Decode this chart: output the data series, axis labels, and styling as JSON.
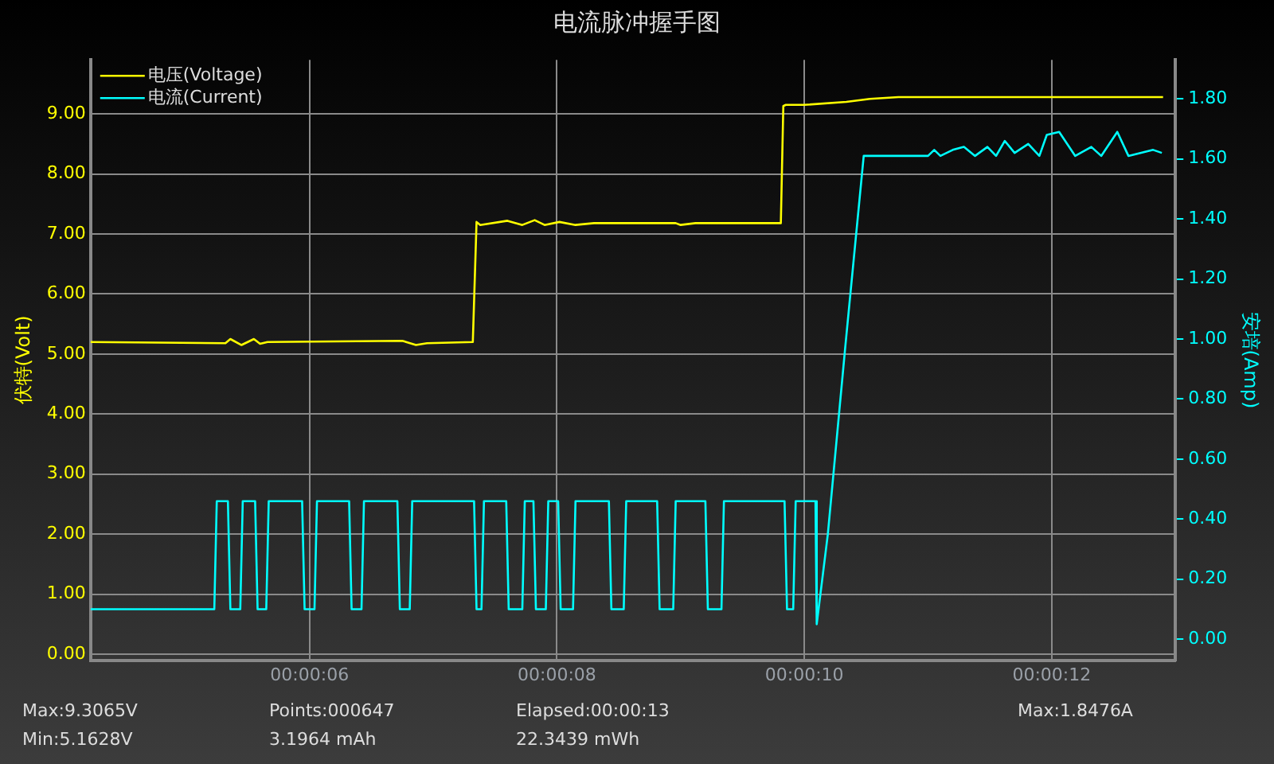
{
  "chart_data": {
    "type": "line",
    "title": "电流脉冲握手图",
    "ylabel": "伏特(Volt)",
    "y2label": "安培(Amp)",
    "xlim": [
      4.23,
      13.0
    ],
    "xticks": [
      {
        "value": 6,
        "label": "00:00:06"
      },
      {
        "value": 8,
        "label": "00:00:08"
      },
      {
        "value": 10,
        "label": "00:00:10"
      },
      {
        "value": 12,
        "label": "00:00:12"
      }
    ],
    "ylim": [
      -0.1,
      9.9
    ],
    "yticks": [
      {
        "value": 0,
        "label": "0.00"
      },
      {
        "value": 1,
        "label": "1.00"
      },
      {
        "value": 2,
        "label": "2.00"
      },
      {
        "value": 3,
        "label": "3.00"
      },
      {
        "value": 4,
        "label": "4.00"
      },
      {
        "value": 5,
        "label": "5.00"
      },
      {
        "value": 6,
        "label": "6.00"
      },
      {
        "value": 7,
        "label": "7.00"
      },
      {
        "value": 8,
        "label": "8.00"
      },
      {
        "value": 9,
        "label": "9.00"
      }
    ],
    "y2lim": [
      -0.07,
      1.93
    ],
    "y2ticks": [
      {
        "value": 0,
        "label": "0.00"
      },
      {
        "value": 0.2,
        "label": "0.20"
      },
      {
        "value": 0.4,
        "label": "0.40"
      },
      {
        "value": 0.6,
        "label": "0.60"
      },
      {
        "value": 0.8,
        "label": "0.80"
      },
      {
        "value": 1,
        "label": "1.00"
      },
      {
        "value": 1.2,
        "label": "1.20"
      },
      {
        "value": 1.4,
        "label": "1.40"
      },
      {
        "value": 1.6,
        "label": "1.60"
      },
      {
        "value": 1.8,
        "label": "1.80"
      }
    ],
    "grid": true,
    "legend": "top left",
    "marker": "none",
    "line_style": "solid",
    "series": [
      {
        "name": "电压(Voltage)",
        "color": "#ffff00",
        "x": [
          4.23,
          5.32,
          5.36,
          5.45,
          5.55,
          5.6,
          5.66,
          6.75,
          6.86,
          6.95,
          7.32,
          7.35,
          7.38,
          7.6,
          7.72,
          7.82,
          7.9,
          8.02,
          8.15,
          8.3,
          8.96,
          9.0,
          9.12,
          9.81,
          9.83,
          9.85,
          10.0,
          10.34,
          10.53,
          10.76,
          12.9
        ],
        "values": [
          5.2,
          5.18,
          5.25,
          5.15,
          5.25,
          5.17,
          5.2,
          5.22,
          5.15,
          5.18,
          5.2,
          7.2,
          7.15,
          7.22,
          7.15,
          7.23,
          7.15,
          7.2,
          7.15,
          7.18,
          7.18,
          7.15,
          7.18,
          7.18,
          9.13,
          9.15,
          9.15,
          9.2,
          9.25,
          9.28,
          9.28
        ]
      },
      {
        "name": "电流(Current)",
        "color": "#00ffff",
        "axis": "y2",
        "x": [
          4.23,
          5.23,
          5.25,
          5.34,
          5.36,
          5.44,
          5.46,
          5.56,
          5.58,
          5.65,
          5.67,
          5.94,
          5.96,
          6.04,
          6.06,
          6.32,
          6.34,
          6.42,
          6.44,
          6.71,
          6.73,
          6.81,
          6.83,
          7.33,
          7.35,
          7.39,
          7.41,
          7.59,
          7.61,
          7.72,
          7.74,
          7.81,
          7.83,
          7.91,
          7.93,
          8.01,
          8.03,
          8.13,
          8.15,
          8.42,
          8.44,
          8.54,
          8.56,
          8.81,
          8.83,
          8.94,
          8.96,
          9.2,
          9.22,
          9.33,
          9.35,
          9.84,
          9.86,
          9.91,
          9.93,
          10.09,
          10.1,
          10.19,
          10.33,
          10.48,
          11.0,
          11.05,
          11.1,
          11.2,
          11.29,
          11.38,
          11.48,
          11.55,
          11.62,
          11.7,
          11.81,
          11.9,
          11.96,
          12.06,
          12.19,
          12.32,
          12.4,
          12.53,
          12.62,
          12.82,
          12.89
        ],
        "values": [
          0.1,
          0.1,
          0.46,
          0.46,
          0.1,
          0.1,
          0.46,
          0.46,
          0.1,
          0.1,
          0.46,
          0.46,
          0.1,
          0.1,
          0.46,
          0.46,
          0.1,
          0.1,
          0.46,
          0.46,
          0.1,
          0.1,
          0.46,
          0.46,
          0.1,
          0.1,
          0.46,
          0.46,
          0.1,
          0.1,
          0.46,
          0.46,
          0.1,
          0.1,
          0.46,
          0.46,
          0.1,
          0.1,
          0.46,
          0.46,
          0.1,
          0.1,
          0.46,
          0.46,
          0.1,
          0.1,
          0.46,
          0.46,
          0.1,
          0.1,
          0.46,
          0.46,
          0.1,
          0.1,
          0.46,
          0.46,
          0.05,
          0.35,
          0.97,
          1.61,
          1.61,
          1.63,
          1.61,
          1.63,
          1.64,
          1.61,
          1.64,
          1.61,
          1.66,
          1.62,
          1.65,
          1.61,
          1.68,
          1.69,
          1.61,
          1.64,
          1.61,
          1.69,
          1.61,
          1.63,
          1.62
        ]
      }
    ],
    "annotations": [
      "Max:9.3065V",
      "Min:5.1628V",
      "Points:000647",
      "3.1964 mAh",
      "Elapsed:00:00:13",
      "22.3439 mWh",
      "Max:1.8476A"
    ]
  }
}
